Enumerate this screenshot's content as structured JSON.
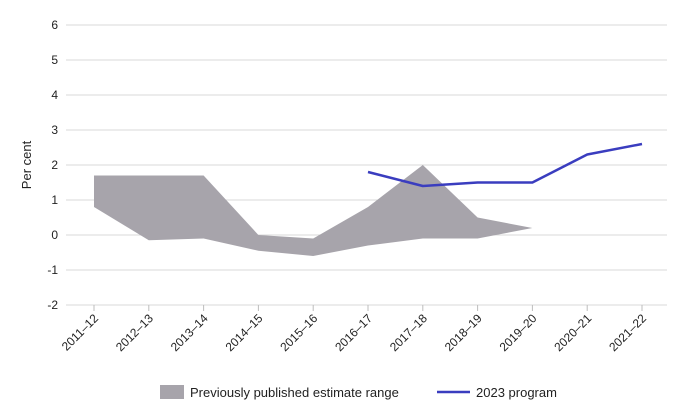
{
  "chart_data": {
    "type": "line",
    "title": "",
    "xlabel": "",
    "ylabel": "Per cent",
    "ylim": [
      -2,
      6
    ],
    "yticks": [
      -2,
      -1,
      0,
      1,
      2,
      3,
      4,
      5,
      6
    ],
    "grid": true,
    "legend_position": "bottom",
    "categories": [
      "2011–12",
      "2012–13",
      "2013–14",
      "2014–15",
      "2015–16",
      "2016–17",
      "2017–18",
      "2018–19",
      "2019–20",
      "2020–21",
      "2021–22"
    ],
    "range": {
      "name": "Previously published estimate range",
      "color": "#a7a4ab",
      "upper": [
        1.7,
        1.7,
        1.7,
        0.0,
        -0.1,
        0.8,
        2.0,
        0.5,
        0.2
      ],
      "lower": [
        0.8,
        -0.15,
        -0.1,
        -0.45,
        -0.6,
        -0.3,
        -0.1,
        -0.1,
        0.2
      ]
    },
    "series": [
      {
        "name": "2023 program",
        "color": "#3a3dbf",
        "values": [
          null,
          null,
          null,
          null,
          null,
          1.8,
          1.4,
          1.5,
          1.5,
          2.3,
          2.6
        ]
      }
    ]
  }
}
